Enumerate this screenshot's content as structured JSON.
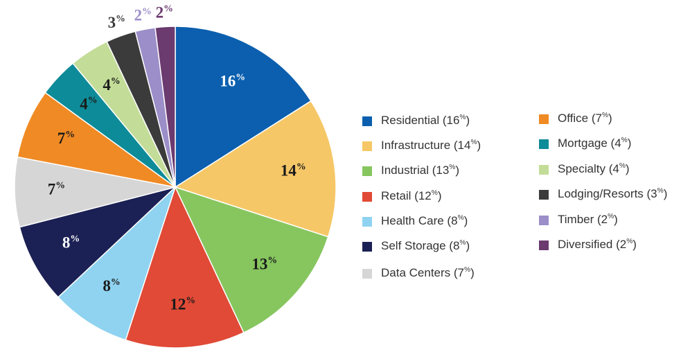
{
  "chart_data": {
    "type": "pie",
    "categories": [
      "Residential (16%)",
      "Infrastructure (14%)",
      "Industrial (13%)",
      "Retail (12%)",
      "Health Care (8%)",
      "Self Storage (8%)",
      "Data Centers (7%)",
      "Office (7%)",
      "Mortgage (4%)",
      "Specialty (4%)",
      "Lodging/Resorts (3%)",
      "Timber (2%)",
      "Diversified (2%)"
    ],
    "values": [
      16,
      14,
      13,
      12,
      8,
      8,
      7,
      7,
      4,
      4,
      3,
      2,
      2
    ],
    "value_labels": [
      "16%",
      "14%",
      "13%",
      "12%",
      "8%",
      "8%",
      "7%",
      "7%",
      "4%",
      "4%",
      "3%",
      "2%",
      "2%"
    ],
    "colors": [
      "#0b5fae",
      "#f6c767",
      "#87c65f",
      "#e04a36",
      "#8fd3f0",
      "#1b2154",
      "#d6d6d6",
      "#f08a24",
      "#0e8b98",
      "#c3dd98",
      "#3b3b3b",
      "#9c8ec8",
      "#6b3a6f"
    ],
    "legend": "right"
  }
}
